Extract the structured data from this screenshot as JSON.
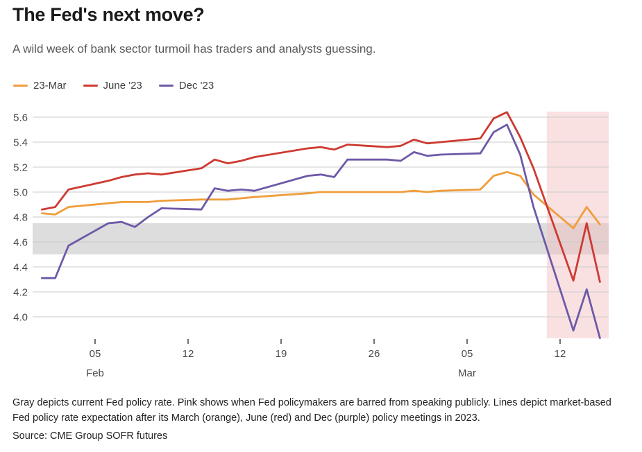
{
  "header": {
    "title": "The Fed's next move?",
    "subtitle": "A wild week of bank sector turmoil has traders and analysts guessing."
  },
  "footer": {
    "note": "Gray depicts current Fed policy rate. Pink shows when Fed policymakers are barred from speaking publicly. Lines depict market-based Fed policy rate expectation after its March (orange), June (red) and Dec (purple) policy meetings in 2023.",
    "source": "Source: CME Group SOFR futures"
  },
  "chart_data": {
    "type": "line",
    "title": "The Fed's next move?",
    "grid": true,
    "legend_position": "top-left",
    "ylim": [
      3.83,
      5.65
    ],
    "x_dates": [
      "2023-02-01",
      "2023-02-02",
      "2023-02-03",
      "2023-02-06",
      "2023-02-07",
      "2023-02-08",
      "2023-02-09",
      "2023-02-10",
      "2023-02-13",
      "2023-02-14",
      "2023-02-15",
      "2023-02-16",
      "2023-02-17",
      "2023-02-21",
      "2023-02-22",
      "2023-02-23",
      "2023-02-24",
      "2023-02-27",
      "2023-02-28",
      "2023-03-01",
      "2023-03-02",
      "2023-03-03",
      "2023-03-06",
      "2023-03-07",
      "2023-03-08",
      "2023-03-09",
      "2023-03-10",
      "2023-03-13",
      "2023-03-14",
      "2023-03-15"
    ],
    "xticks": [
      {
        "date": "2023-02-05",
        "label": "05"
      },
      {
        "date": "2023-02-12",
        "label": "12"
      },
      {
        "date": "2023-02-19",
        "label": "19"
      },
      {
        "date": "2023-02-26",
        "label": "26"
      },
      {
        "date": "2023-03-05",
        "label": "05"
      },
      {
        "date": "2023-03-12",
        "label": "12"
      }
    ],
    "month_labels": [
      {
        "date": "2023-02-05",
        "label": "Feb"
      },
      {
        "date": "2023-03-05",
        "label": "Mar"
      }
    ],
    "yticks": [
      {
        "value": 5.6,
        "label": "5.6"
      },
      {
        "value": 5.4,
        "label": "5.4"
      },
      {
        "value": 5.2,
        "label": "5.2"
      },
      {
        "value": 5.0,
        "label": "5.0"
      },
      {
        "value": 4.8,
        "label": "4.8"
      },
      {
        "value": 4.6,
        "label": "4.6"
      },
      {
        "value": 4.4,
        "label": "4.4"
      },
      {
        "value": 4.2,
        "label": "4.2"
      },
      {
        "value": 4.0,
        "label": "4.0"
      }
    ],
    "series": [
      {
        "id": "23-mar",
        "name": "23-Mar",
        "color": "#ef9d3c",
        "values": [
          4.83,
          4.82,
          4.88,
          4.91,
          4.92,
          4.92,
          4.92,
          4.93,
          4.94,
          4.94,
          4.94,
          4.95,
          4.96,
          4.99,
          5.0,
          5.0,
          5.0,
          5.0,
          5.0,
          5.01,
          5.0,
          5.01,
          5.02,
          5.13,
          5.16,
          5.13,
          4.98,
          4.71,
          4.88,
          4.74
        ]
      },
      {
        "id": "june-23",
        "name": "June '23",
        "color": "#cd3a31",
        "values": [
          4.86,
          4.88,
          5.02,
          5.09,
          5.12,
          5.14,
          5.15,
          5.14,
          5.19,
          5.26,
          5.23,
          5.25,
          5.28,
          5.35,
          5.36,
          5.34,
          5.38,
          5.36,
          5.37,
          5.42,
          5.39,
          5.4,
          5.43,
          5.59,
          5.64,
          5.44,
          5.19,
          4.29,
          4.75,
          4.28
        ]
      },
      {
        "id": "dec-23",
        "name": "Dec '23",
        "color": "#6e59a7",
        "values": [
          4.31,
          4.31,
          4.57,
          4.75,
          4.76,
          4.72,
          4.8,
          4.87,
          4.86,
          5.03,
          5.01,
          5.02,
          5.01,
          5.13,
          5.14,
          5.12,
          5.26,
          5.26,
          5.25,
          5.32,
          5.29,
          5.3,
          5.31,
          5.48,
          5.54,
          5.3,
          4.88,
          3.89,
          4.22,
          3.83
        ]
      }
    ],
    "bands": {
      "gray": {
        "from_value": 4.5,
        "to_value": 4.75,
        "color": "#dddddd",
        "meaning": "current Fed policy rate"
      },
      "pink": {
        "start_date": "2023-03-11",
        "color": "rgba(242,189,191,0.45)",
        "meaning": "Fed policymakers barred from speaking publicly"
      }
    }
  }
}
